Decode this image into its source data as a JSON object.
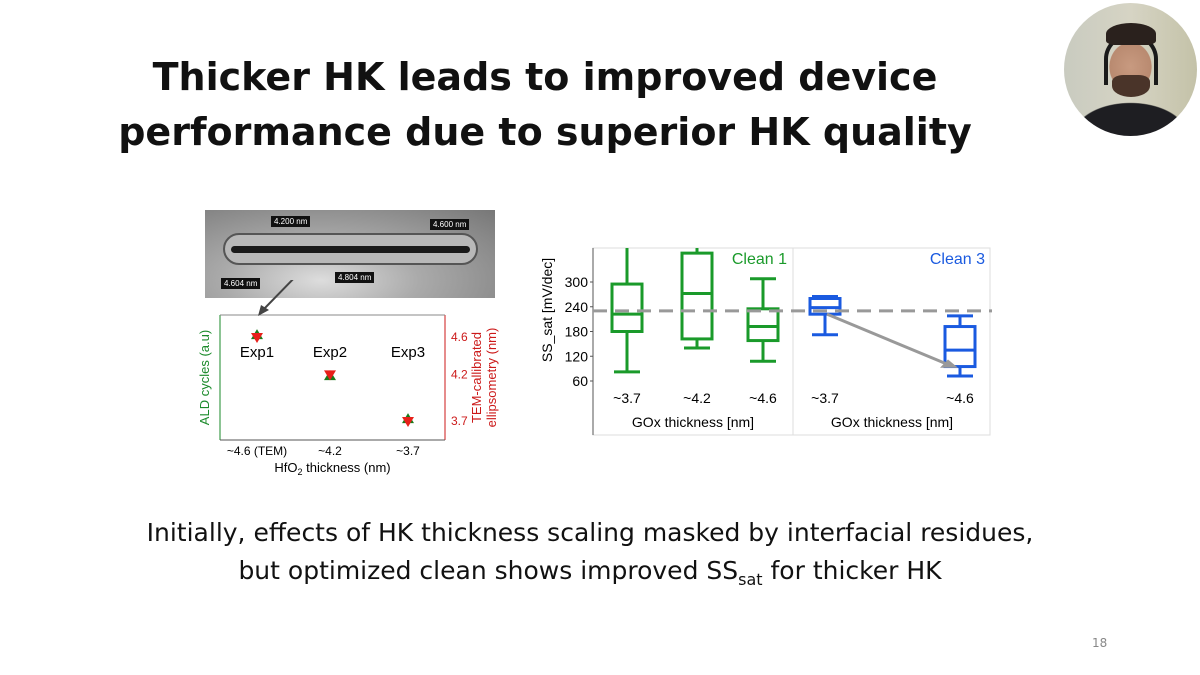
{
  "slide": {
    "title_line1": "Thicker HK leads to improved device",
    "title_line2": "performance due to superior HK quality",
    "bottom_line1": "Initially, effects of HK thickness scaling masked by interfacial residues,",
    "bottom_line2_pre": "but optimized clean shows improved SS",
    "bottom_line2_sub": "sat",
    "bottom_line2_post": " for thicker HK",
    "page_number": "18"
  },
  "webcam": {
    "icon": "presenter-video-feed"
  },
  "tem_image": {
    "labels": [
      "4.200 nm",
      "4.600 nm",
      "4.604 nm",
      "4.804 nm"
    ]
  },
  "chart_data": [
    {
      "type": "scatter",
      "xlabel_pre": "HfO",
      "xlabel_sub": "2",
      "xlabel_post": " thickness (nm)",
      "ylabel_left": "ALD cycles (a.u)",
      "ylabel_right_line1": "TEM-callibrated",
      "ylabel_right_line2": "ellipsometry (nm)",
      "categories": [
        "~4.6 (TEM)",
        "~4.2",
        "~3.7"
      ],
      "right_ticks": [
        "4.6",
        "4.2",
        "3.7"
      ],
      "annotations": [
        "Exp1",
        "Exp2",
        "Exp3"
      ],
      "series": [
        {
          "marker": "triangle-up",
          "color": "#1a7a1a",
          "values": [
            4.62,
            4.18,
            3.72
          ]
        },
        {
          "marker": "triangle-down",
          "color": "#e8201a",
          "values": [
            4.6,
            4.2,
            3.7
          ]
        }
      ],
      "colors": {
        "left_axis": "#1a8a2a",
        "right_axis": "#cc1a1a"
      }
    },
    {
      "type": "box",
      "ylabel": "SS_sat [mV/dec]",
      "yticks": [
        60,
        120,
        180,
        240,
        300
      ],
      "ylim": [
        55,
        382
      ],
      "reference_line": 230,
      "panels": [
        {
          "name": "Clean 1",
          "color": "#1a9a2a",
          "xlabel": "GOx thickness [nm]",
          "categories": [
            "~3.7",
            "~4.2",
            "~4.6"
          ],
          "boxes": [
            {
              "min": 82,
              "q1": 180,
              "median": 222,
              "q3": 295,
              "max": 400
            },
            {
              "min": 140,
              "q1": 162,
              "median": 272,
              "q3": 370,
              "max": 400
            },
            {
              "min": 108,
              "q1": 158,
              "median": 192,
              "q3": 235,
              "max": 308
            }
          ]
        },
        {
          "name": "Clean 3",
          "color": "#1a5ae0",
          "xlabel": "GOx thickness [nm]",
          "categories": [
            "~3.7",
            "~4.6"
          ],
          "boxes": [
            {
              "min": 172,
              "q1": 222,
              "median": 238,
              "q3": 260,
              "max": 265
            },
            {
              "min": 72,
              "q1": 95,
              "median": 135,
              "q3": 192,
              "max": 218
            }
          ]
        }
      ]
    }
  ]
}
